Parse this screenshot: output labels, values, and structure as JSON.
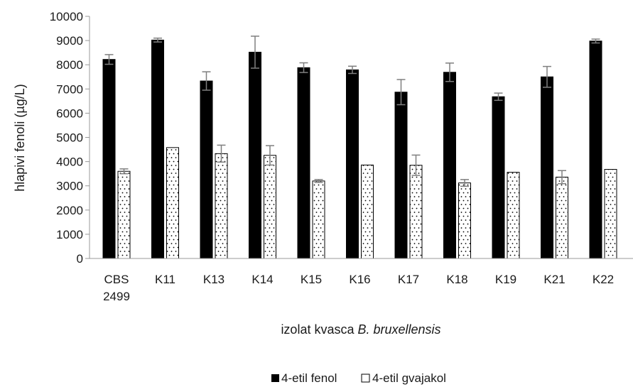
{
  "chart_data": {
    "type": "bar",
    "ylabel": "hlapivi fenoli (µg/L)",
    "xlabel_parts": [
      "izolat kvasca ",
      "B. bruxellensis"
    ],
    "categories": [
      [
        "CBS",
        "2499"
      ],
      [
        "K11"
      ],
      [
        "K13"
      ],
      [
        "K14"
      ],
      [
        "K15"
      ],
      [
        "K16"
      ],
      [
        "K17"
      ],
      [
        "K18"
      ],
      [
        "K19"
      ],
      [
        "K21"
      ],
      [
        "K22"
      ]
    ],
    "ylim": [
      0,
      10000
    ],
    "yticks": [
      "0",
      "1000",
      "2000",
      "3000",
      "4000",
      "5000",
      "6000",
      "7000",
      "8000",
      "9000",
      "10000"
    ],
    "grid": false,
    "legend_position": "bottom",
    "series": [
      {
        "name": "4-etil fenol",
        "color": "#000000",
        "pattern": "solid",
        "values": [
          8220,
          9020,
          7330,
          8520,
          7880,
          7790,
          6870,
          7690,
          6680,
          7500,
          8980
        ],
        "errors": [
          200,
          80,
          380,
          660,
          200,
          150,
          520,
          380,
          150,
          430,
          80
        ]
      },
      {
        "name": "4-etil gvajakol",
        "color": "#ffffff",
        "pattern": "dots",
        "values": [
          3600,
          4580,
          4330,
          4260,
          3200,
          3860,
          3850,
          3120,
          3560,
          3360,
          3680
        ],
        "errors": [
          100,
          0,
          350,
          400,
          60,
          0,
          420,
          140,
          0,
          270,
          0
        ]
      }
    ]
  }
}
